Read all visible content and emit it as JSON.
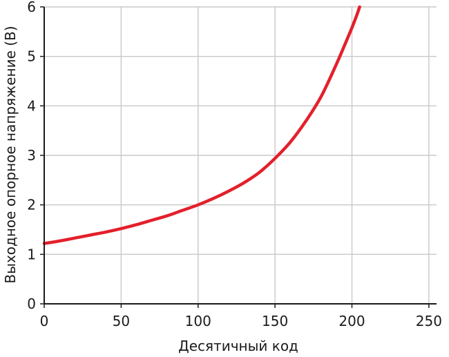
{
  "chart_data": {
    "type": "line",
    "title": "",
    "xlabel": "Десятичный код",
    "ylabel": "Выходное опорное напряжение (В)",
    "xlim": [
      0,
      255
    ],
    "ylim": [
      0,
      6
    ],
    "x_ticks": [
      0,
      50,
      100,
      150,
      200,
      250
    ],
    "y_ticks": [
      0,
      1,
      2,
      3,
      4,
      5,
      6
    ],
    "grid": true,
    "legend": "none",
    "colors": {
      "series": "#e3202b",
      "grid": "#c8c8c8",
      "axis": "#1a1a1a"
    },
    "series": [
      {
        "x": [
          0,
          10,
          20,
          30,
          40,
          50,
          60,
          70,
          80,
          90,
          100,
          110,
          120,
          130,
          140,
          150,
          160,
          170,
          180,
          190,
          195,
          200,
          203,
          205
        ],
        "y": [
          1.22,
          1.27,
          1.33,
          1.39,
          1.45,
          1.52,
          1.6,
          1.69,
          1.78,
          1.89,
          2.0,
          2.13,
          2.28,
          2.45,
          2.66,
          2.94,
          3.27,
          3.69,
          4.19,
          4.85,
          5.21,
          5.58,
          5.82,
          6.0
        ]
      }
    ]
  }
}
